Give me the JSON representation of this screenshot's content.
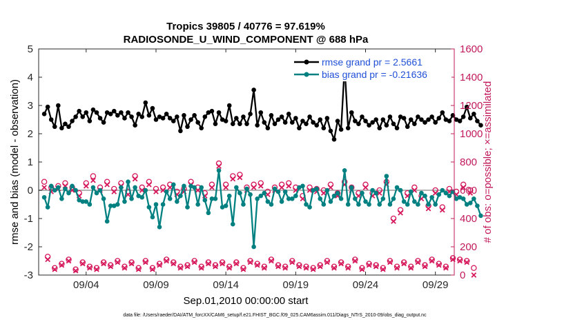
{
  "chart_data": {
    "type": "line",
    "title": "Tropics 39805 / 40776 = 97.619%",
    "subtitle": "RADIOSONDE_U_WIND_COMPONENT @ 688 hPa",
    "xlabel": "Sep.01,2010 00:00:00 start",
    "ylabel": "rmse and bias (model - observation)",
    "y2label": "# of obs: o=possible; ×=assimilated",
    "footer": "data file: /Users/raeder/DAI/ATM_forcXX/CAM6_setup/f.e21.FHIST_BGC.f09_025.CAM6assim.011/Diags_NTrS_2010-09/obs_diag_output.nc",
    "xlim": [
      0.6,
      30.35
    ],
    "ylim": [
      -3,
      5
    ],
    "y2lim": [
      0,
      1600
    ],
    "xticks": [
      {
        "pos": 4,
        "label": "09/04"
      },
      {
        "pos": 9,
        "label": "09/09"
      },
      {
        "pos": 14,
        "label": "09/14"
      },
      {
        "pos": 19,
        "label": "09/19"
      },
      {
        "pos": 24,
        "label": "09/24"
      },
      {
        "pos": 29,
        "label": "09/29"
      }
    ],
    "yticks": [
      {
        "v": 5,
        "label": "5"
      },
      {
        "v": 4,
        "label": "4"
      },
      {
        "v": 3,
        "label": "3"
      },
      {
        "v": 2,
        "label": "2"
      },
      {
        "v": 1,
        "label": "1"
      },
      {
        "v": 0,
        "label": "0"
      },
      {
        "v": -1,
        "label": "-1"
      },
      {
        "v": -2,
        "label": "-2"
      },
      {
        "v": -3,
        "label": "-3"
      }
    ],
    "y2ticks": [
      {
        "v": 1600,
        "label": "1600"
      },
      {
        "v": 1400,
        "label": "1400"
      },
      {
        "v": 1200,
        "label": "1200"
      },
      {
        "v": 1000,
        "label": "1000"
      },
      {
        "v": 800,
        "label": "800"
      },
      {
        "v": 600,
        "label": "600"
      },
      {
        "v": 400,
        "label": "400"
      },
      {
        "v": 200,
        "label": "200"
      },
      {
        "v": 0,
        "label": "0"
      }
    ],
    "x_start": 1.0,
    "x_step": 0.25,
    "series": [
      {
        "name": "rmse grand pr = 2.5661",
        "axis": "left",
        "color": "#000000",
        "values": [
          2.7,
          2.95,
          2.5,
          2.25,
          3.0,
          2.2,
          2.35,
          2.25,
          2.45,
          2.6,
          2.8,
          2.6,
          2.75,
          2.45,
          2.85,
          2.75,
          2.55,
          2.4,
          2.75,
          2.7,
          2.8,
          2.65,
          2.75,
          2.55,
          2.75,
          2.6,
          2.3,
          2.7,
          2.6,
          3.1,
          2.65,
          2.9,
          2.5,
          2.6,
          2.55,
          2.7,
          2.55,
          2.45,
          2.6,
          2.1,
          2.65,
          2.25,
          2.5,
          2.65,
          2.4,
          2.2,
          2.6,
          2.75,
          2.8,
          2.35,
          2.75,
          2.5,
          2.45,
          3.0,
          2.35,
          2.55,
          2.35,
          2.6,
          2.35,
          2.7,
          3.55,
          2.3,
          2.75,
          2.4,
          2.2,
          2.65,
          2.35,
          2.5,
          2.6,
          2.4,
          2.7,
          2.4,
          2.55,
          2.2,
          2.45,
          2.35,
          2.6,
          2.4,
          2.3,
          2.5,
          2.2,
          2.55,
          2.1,
          1.8,
          2.45,
          2.15,
          4.4,
          2.2,
          2.75,
          2.45,
          2.35,
          2.6,
          2.45,
          2.3,
          2.4,
          2.5,
          2.2,
          2.5,
          2.3,
          2.6,
          2.35,
          2.2,
          2.6,
          2.55,
          2.25,
          2.5,
          2.35,
          2.6,
          2.5,
          2.4,
          2.5,
          2.6,
          2.4,
          2.55,
          2.75,
          2.5,
          2.45,
          2.65,
          2.5,
          2.45,
          2.6,
          2.95,
          2.55,
          2.7,
          2.45,
          2.3
        ]
      },
      {
        "name": "bias grand pr = -0.21636",
        "axis": "left",
        "color": "#008080",
        "values": [
          -0.25,
          -0.6,
          0.15,
          0.0,
          0.1,
          -0.3,
          0.05,
          -0.1,
          0.15,
          0.0,
          -0.35,
          -0.4,
          -0.4,
          -0.5,
          0.1,
          -0.1,
          0.0,
          -0.3,
          -1.1,
          -0.55,
          -0.55,
          -0.5,
          0.1,
          -0.4,
          0.3,
          -0.3,
          0.1,
          -0.2,
          -0.25,
          0.0,
          -0.6,
          -0.95,
          -0.5,
          -1.3,
          -0.5,
          -0.05,
          -0.3,
          0.2,
          -0.4,
          -0.2,
          0.15,
          -0.6,
          0.15,
          0.1,
          -0.5,
          0.1,
          -0.35,
          -0.8,
          -0.3,
          -0.3,
          0.7,
          -0.6,
          -0.55,
          -0.2,
          -1.2,
          0.1,
          -0.1,
          -0.5,
          0.05,
          -0.15,
          -2.0,
          -0.3,
          -0.2,
          -0.1,
          -0.4,
          -0.5,
          0.05,
          -0.05,
          -0.4,
          -0.05,
          -0.3,
          -0.3,
          -0.2,
          0.1,
          0.15,
          -0.5,
          -0.6,
          0.0,
          0.05,
          -0.3,
          -0.5,
          0.0,
          -0.4,
          -0.2,
          -0.1,
          -0.3,
          0.7,
          -0.5,
          0.1,
          -0.3,
          -0.5,
          -0.1,
          -0.4,
          -0.5,
          0.0,
          -0.1,
          -0.5,
          -0.3,
          0.5,
          -0.5,
          -0.3,
          0.1,
          0.0,
          -0.4,
          -0.5,
          -0.05,
          -0.4,
          -0.5,
          -0.1,
          -0.2,
          -0.5,
          -0.25,
          -0.5,
          -0.15,
          0.0,
          -0.1,
          -0.2,
          -0.05,
          -0.3,
          -0.25,
          -0.3,
          -0.5,
          -0.45,
          -0.3,
          -0.55,
          -0.9
        ]
      },
      {
        "name": "# possible",
        "axis": "right",
        "color": "#d6175b",
        "marker": "circle",
        "values": [
          660,
          130,
          620,
          50,
          630,
          80,
          650,
          110,
          620,
          40,
          580,
          90,
          650,
          60,
          700,
          50,
          620,
          90,
          660,
          70,
          610,
          100,
          650,
          60,
          590,
          90,
          700,
          50,
          620,
          100,
          660,
          50,
          610,
          80,
          620,
          110,
          640,
          90,
          590,
          60,
          610,
          70,
          660,
          100,
          620,
          60,
          580,
          90,
          640,
          70,
          790,
          90,
          640,
          60,
          700,
          90,
          710,
          50,
          620,
          100,
          640,
          80,
          650,
          60,
          590,
          110,
          620,
          70,
          640,
          60,
          650,
          100,
          620,
          70,
          560,
          60,
          620,
          50,
          610,
          70,
          600,
          100,
          640,
          60,
          580,
          90,
          660,
          60,
          620,
          110,
          580,
          50,
          640,
          80,
          580,
          70,
          600,
          50,
          660,
          100,
          400,
          60,
          460,
          90,
          580,
          60,
          620,
          100,
          560,
          70,
          490,
          110,
          600,
          80,
          480,
          60,
          610,
          120,
          590,
          110,
          640,
          100,
          600,
          50
        ]
      },
      {
        "name": "# assimilated",
        "axis": "right",
        "color": "#d6175b",
        "marker": "x",
        "values": [
          620,
          110,
          590,
          40,
          610,
          70,
          630,
          100,
          600,
          30,
          560,
          80,
          630,
          50,
          670,
          40,
          600,
          80,
          640,
          60,
          590,
          90,
          630,
          50,
          570,
          80,
          680,
          40,
          600,
          90,
          640,
          40,
          590,
          70,
          600,
          100,
          620,
          80,
          570,
          50,
          590,
          60,
          640,
          90,
          600,
          50,
          560,
          80,
          620,
          60,
          770,
          80,
          620,
          50,
          680,
          80,
          690,
          40,
          600,
          90,
          620,
          70,
          630,
          50,
          570,
          100,
          600,
          60,
          620,
          50,
          630,
          90,
          600,
          60,
          540,
          50,
          600,
          40,
          590,
          60,
          580,
          90,
          620,
          50,
          560,
          80,
          640,
          50,
          600,
          100,
          560,
          40,
          620,
          70,
          560,
          60,
          580,
          40,
          640,
          90,
          380,
          50,
          440,
          80,
          560,
          50,
          600,
          90,
          540,
          60,
          470,
          100,
          580,
          70,
          460,
          50,
          590,
          110,
          570,
          100,
          620,
          90,
          580,
          0
        ]
      }
    ]
  }
}
